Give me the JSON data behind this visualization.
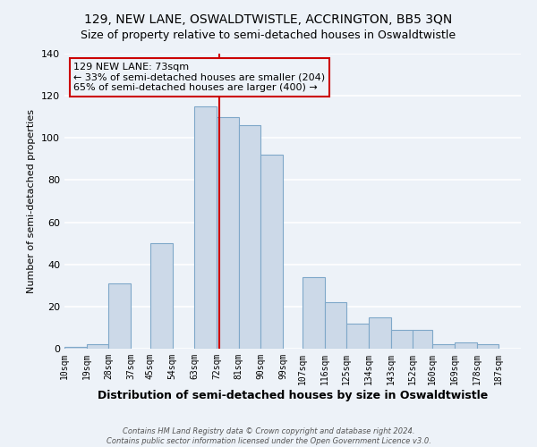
{
  "title": "129, NEW LANE, OSWALDTWISTLE, ACCRINGTON, BB5 3QN",
  "subtitle": "Size of property relative to semi-detached houses in Oswaldtwistle",
  "xlabel": "Distribution of semi-detached houses by size in Oswaldtwistle",
  "ylabel": "Number of semi-detached properties",
  "categories": [
    "10sqm",
    "19sqm",
    "28sqm",
    "37sqm",
    "45sqm",
    "54sqm",
    "63sqm",
    "72sqm",
    "81sqm",
    "90sqm",
    "99sqm",
    "107sqm",
    "116sqm",
    "125sqm",
    "134sqm",
    "143sqm",
    "152sqm",
    "160sqm",
    "169sqm",
    "178sqm",
    "187sqm"
  ],
  "bin_lefts": [
    10,
    19,
    28,
    37,
    45,
    54,
    63,
    72,
    81,
    90,
    99,
    107,
    116,
    125,
    134,
    143,
    152,
    160,
    169,
    178,
    187
  ],
  "heights": [
    1,
    2,
    31,
    0,
    50,
    0,
    115,
    110,
    106,
    92,
    0,
    34,
    22,
    12,
    15,
    9,
    9,
    2,
    3,
    2,
    0
  ],
  "bar_color": "#ccd9e8",
  "bar_edge_color": "#7fa8c9",
  "property_line_x": 73,
  "property_line_color": "#cc0000",
  "annotation_title": "129 NEW LANE: 73sqm",
  "annotation_line1": "← 33% of semi-detached houses are smaller (204)",
  "annotation_line2": "65% of semi-detached houses are larger (400) →",
  "annotation_box_edge": "#cc0000",
  "ylim": [
    0,
    140
  ],
  "yticks": [
    0,
    20,
    40,
    60,
    80,
    100,
    120,
    140
  ],
  "footer1": "Contains HM Land Registry data © Crown copyright and database right 2024.",
  "footer2": "Contains public sector information licensed under the Open Government Licence v3.0.",
  "background_color": "#edf2f8",
  "grid_color": "#ffffff",
  "title_fontsize": 10,
  "subtitle_fontsize": 9,
  "xlabel_fontsize": 9,
  "ylabel_fontsize": 8,
  "tick_fontsize": 7,
  "annotation_fontsize": 8,
  "footer_fontsize": 6
}
